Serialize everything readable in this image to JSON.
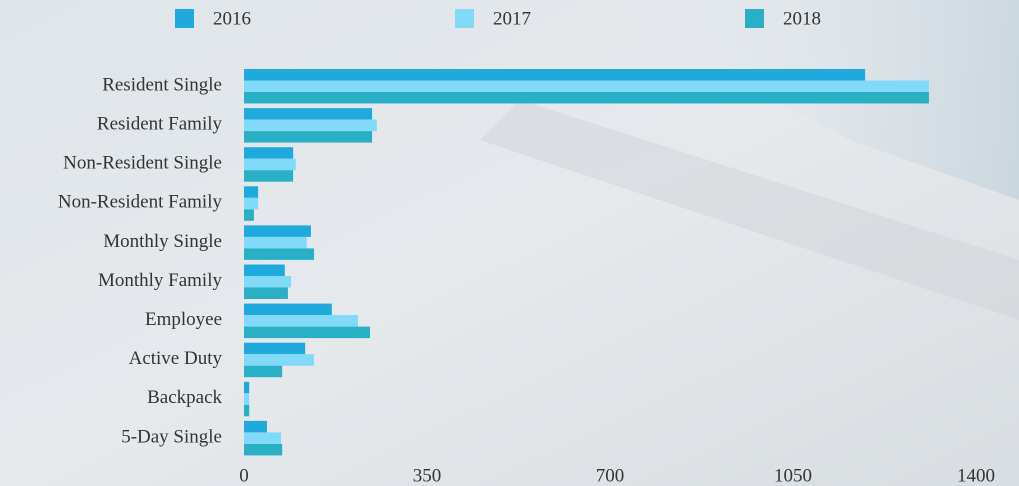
{
  "chart_data": {
    "type": "bar",
    "orientation": "horizontal",
    "categories": [
      "Resident Single",
      "Resident Family",
      "Non-Resident Single",
      "Non-Resident Family",
      "Monthly Single",
      "Monthly Family",
      "Employee",
      "Active Duty",
      "Backpack",
      "5-Day Single"
    ],
    "series": [
      {
        "name": "2016",
        "color": "#1fa9dd",
        "values": [
          1188,
          245,
          94,
          27,
          128,
          78,
          168,
          117,
          10,
          44
        ]
      },
      {
        "name": "2017",
        "color": "#80daf8",
        "values": [
          1310,
          254,
          99,
          27,
          120,
          90,
          218,
          134,
          10,
          71
        ]
      },
      {
        "name": "2018",
        "color": "#2ab0c5",
        "values": [
          1310,
          245,
          94,
          19,
          134,
          84,
          241,
          73,
          10,
          73
        ]
      }
    ],
    "xlim": [
      0,
      1400
    ],
    "xticks": [
      0,
      350,
      700,
      1050,
      1400
    ],
    "grid": false
  }
}
